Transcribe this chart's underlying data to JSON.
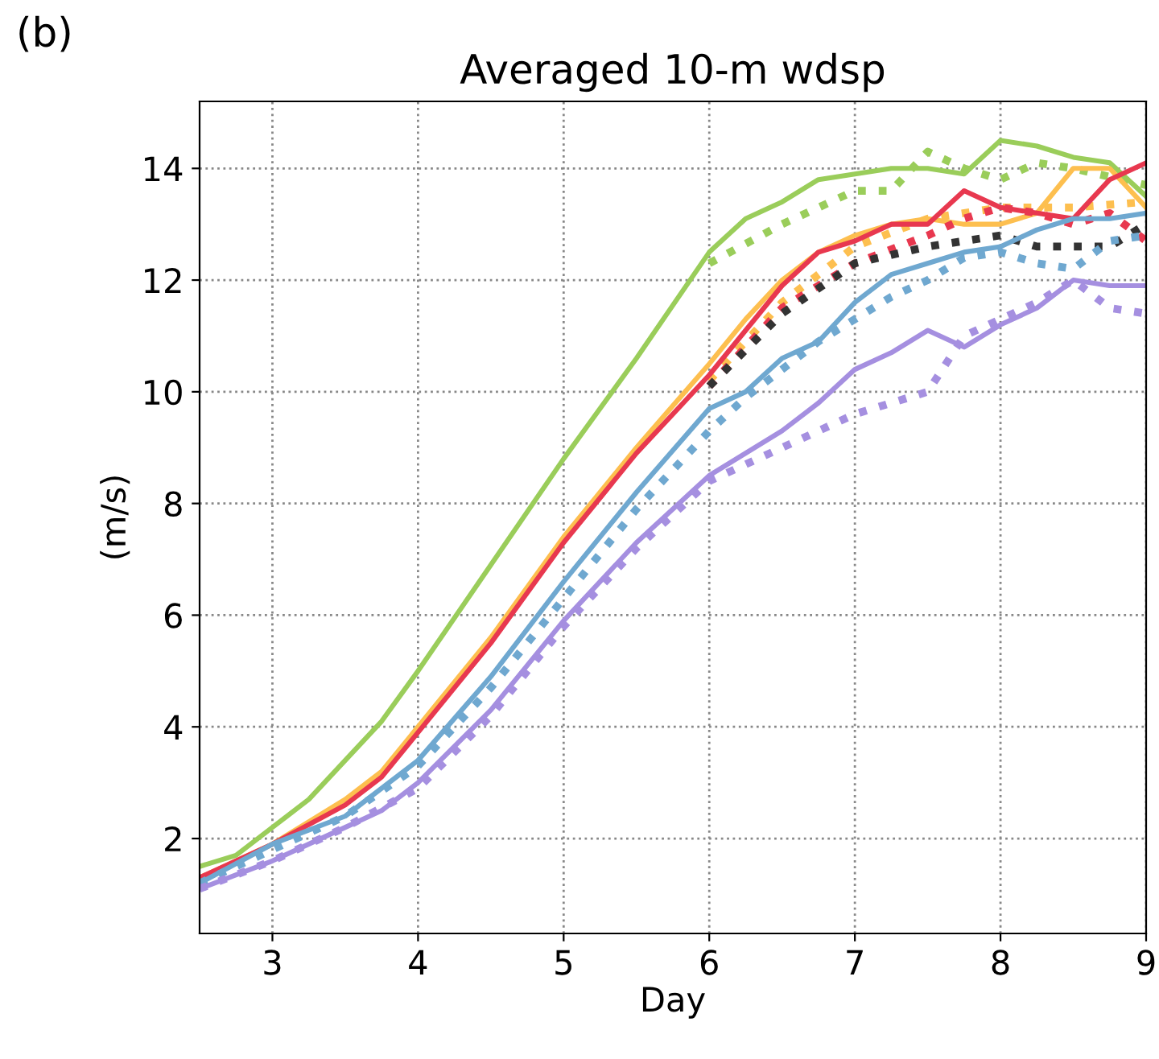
{
  "chart_data": {
    "type": "line",
    "title": "Averaged 10-m wdsp",
    "xlabel": "Day",
    "ylabel": "(m/s)",
    "annotations": [
      "(b)"
    ],
    "xlim": [
      2.5,
      9
    ],
    "xticks": [
      3,
      4,
      5,
      6,
      7,
      8,
      9
    ],
    "ylim": [
      0.3,
      15.2
    ],
    "yticks": [
      2,
      4,
      6,
      8,
      10,
      12,
      14
    ],
    "grid": true,
    "series": [
      {
        "color": "#9acd5a",
        "line_style": "solid",
        "x": [
          2.5,
          2.75,
          3,
          3.25,
          3.5,
          3.75,
          4,
          4.5,
          5,
          5.5,
          6,
          6.25,
          6.5,
          6.75,
          7,
          7.25,
          7.5,
          7.75,
          8,
          8.25,
          8.5,
          8.75,
          9
        ],
        "values": [
          1.5,
          1.7,
          2.2,
          2.7,
          3.4,
          4.1,
          5.0,
          6.9,
          8.8,
          10.6,
          12.5,
          13.1,
          13.4,
          13.8,
          13.9,
          14.0,
          14.0,
          13.9,
          14.5,
          14.4,
          14.2,
          14.1,
          13.5
        ]
      },
      {
        "color": "#9acd5a",
        "line_style": "dotted",
        "x": [
          6,
          6.5,
          7,
          7.25,
          7.5,
          7.75,
          8,
          8.25,
          8.5,
          9
        ],
        "values": [
          12.3,
          13.0,
          13.6,
          13.6,
          14.3,
          14.0,
          13.8,
          14.1,
          14.0,
          13.7
        ]
      },
      {
        "color": "#fdbf4f",
        "line_style": "solid",
        "x": [
          2.5,
          3,
          3.5,
          3.75,
          4,
          4.5,
          5,
          5.5,
          6,
          6.25,
          6.5,
          6.75,
          7,
          7.25,
          7.5,
          7.75,
          8,
          8.25,
          8.5,
          8.75,
          9
        ],
        "values": [
          1.3,
          1.9,
          2.7,
          3.2,
          4.0,
          5.6,
          7.4,
          9.0,
          10.5,
          11.3,
          12.0,
          12.5,
          12.8,
          13.0,
          13.1,
          13.0,
          13.0,
          13.2,
          14.0,
          14.0,
          13.3
        ]
      },
      {
        "color": "#fdbf4f",
        "line_style": "dotted",
        "x": [
          6,
          6.5,
          7,
          7.5,
          8,
          8.5,
          9
        ],
        "values": [
          10.2,
          11.6,
          12.6,
          13.1,
          13.3,
          13.3,
          13.4
        ]
      },
      {
        "color": "#e8384f",
        "line_style": "solid",
        "x": [
          2.5,
          3,
          3.5,
          3.75,
          4,
          4.5,
          5,
          5.5,
          6,
          6.25,
          6.5,
          6.75,
          7,
          7.25,
          7.5,
          7.75,
          8,
          8.25,
          8.5,
          8.75,
          9
        ],
        "values": [
          1.3,
          1.9,
          2.6,
          3.1,
          3.9,
          5.5,
          7.3,
          8.9,
          10.3,
          11.1,
          11.9,
          12.5,
          12.7,
          13.0,
          13.0,
          13.6,
          13.3,
          13.2,
          13.1,
          13.8,
          14.1
        ]
      },
      {
        "color": "#e8384f",
        "line_style": "dotted",
        "x": [
          6,
          6.5,
          7,
          7.5,
          7.75,
          8,
          8.25,
          8.5,
          8.75,
          9
        ],
        "values": [
          10.1,
          11.5,
          12.3,
          12.8,
          13.1,
          13.3,
          13.2,
          13.0,
          13.2,
          12.7
        ]
      },
      {
        "color": "#333333",
        "line_style": "dotted",
        "x": [
          6,
          6.5,
          7,
          7.5,
          8,
          8.25,
          8.5,
          8.75,
          9
        ],
        "values": [
          10.1,
          11.4,
          12.3,
          12.6,
          12.8,
          12.6,
          12.6,
          12.6,
          13.0
        ]
      },
      {
        "color": "#6fa8d0",
        "line_style": "solid",
        "x": [
          2.5,
          3,
          3.5,
          4,
          4.5,
          5,
          5.5,
          6,
          6.25,
          6.5,
          6.75,
          7,
          7.25,
          7.5,
          7.75,
          8,
          8.25,
          8.5,
          8.75,
          9
        ],
        "values": [
          1.2,
          1.9,
          2.4,
          3.4,
          4.9,
          6.6,
          8.2,
          9.7,
          10.0,
          10.6,
          10.9,
          11.6,
          12.1,
          12.3,
          12.5,
          12.6,
          12.9,
          13.1,
          13.1,
          13.2
        ]
      },
      {
        "color": "#6fa8d0",
        "line_style": "dotted",
        "x": [
          2.5,
          3,
          3.5,
          4,
          4.5,
          5,
          5.5,
          6,
          6.25,
          6.5,
          6.75,
          7,
          7.25,
          7.5,
          7.75,
          8,
          8.25,
          8.5,
          8.75,
          9
        ],
        "values": [
          1.2,
          1.8,
          2.4,
          3.3,
          4.7,
          6.3,
          7.9,
          9.3,
          9.9,
          10.4,
          10.9,
          11.3,
          11.7,
          12.0,
          12.4,
          12.5,
          12.3,
          12.2,
          12.7,
          12.8
        ]
      },
      {
        "color": "#a58fe0",
        "line_style": "solid",
        "x": [
          2.5,
          3,
          3.5,
          3.75,
          4,
          4.5,
          5,
          5.5,
          6,
          6.25,
          6.5,
          6.75,
          7,
          7.25,
          7.5,
          7.75,
          8,
          8.25,
          8.5,
          8.75,
          9
        ],
        "values": [
          1.1,
          1.6,
          2.2,
          2.5,
          3.0,
          4.3,
          5.9,
          7.3,
          8.5,
          8.9,
          9.3,
          9.8,
          10.4,
          10.7,
          11.1,
          10.8,
          11.2,
          11.5,
          12.0,
          11.9,
          11.9
        ]
      },
      {
        "color": "#a58fe0",
        "line_style": "dotted",
        "x": [
          2.5,
          3,
          3.5,
          4,
          4.5,
          5,
          5.5,
          6,
          6.5,
          7,
          7.25,
          7.5,
          7.75,
          8,
          8.25,
          8.5,
          8.75,
          9
        ],
        "values": [
          1.1,
          1.6,
          2.2,
          2.9,
          4.2,
          5.8,
          7.2,
          8.4,
          9.0,
          9.6,
          9.8,
          10.0,
          11.0,
          11.3,
          11.6,
          12.0,
          11.5,
          11.4
        ]
      }
    ]
  }
}
